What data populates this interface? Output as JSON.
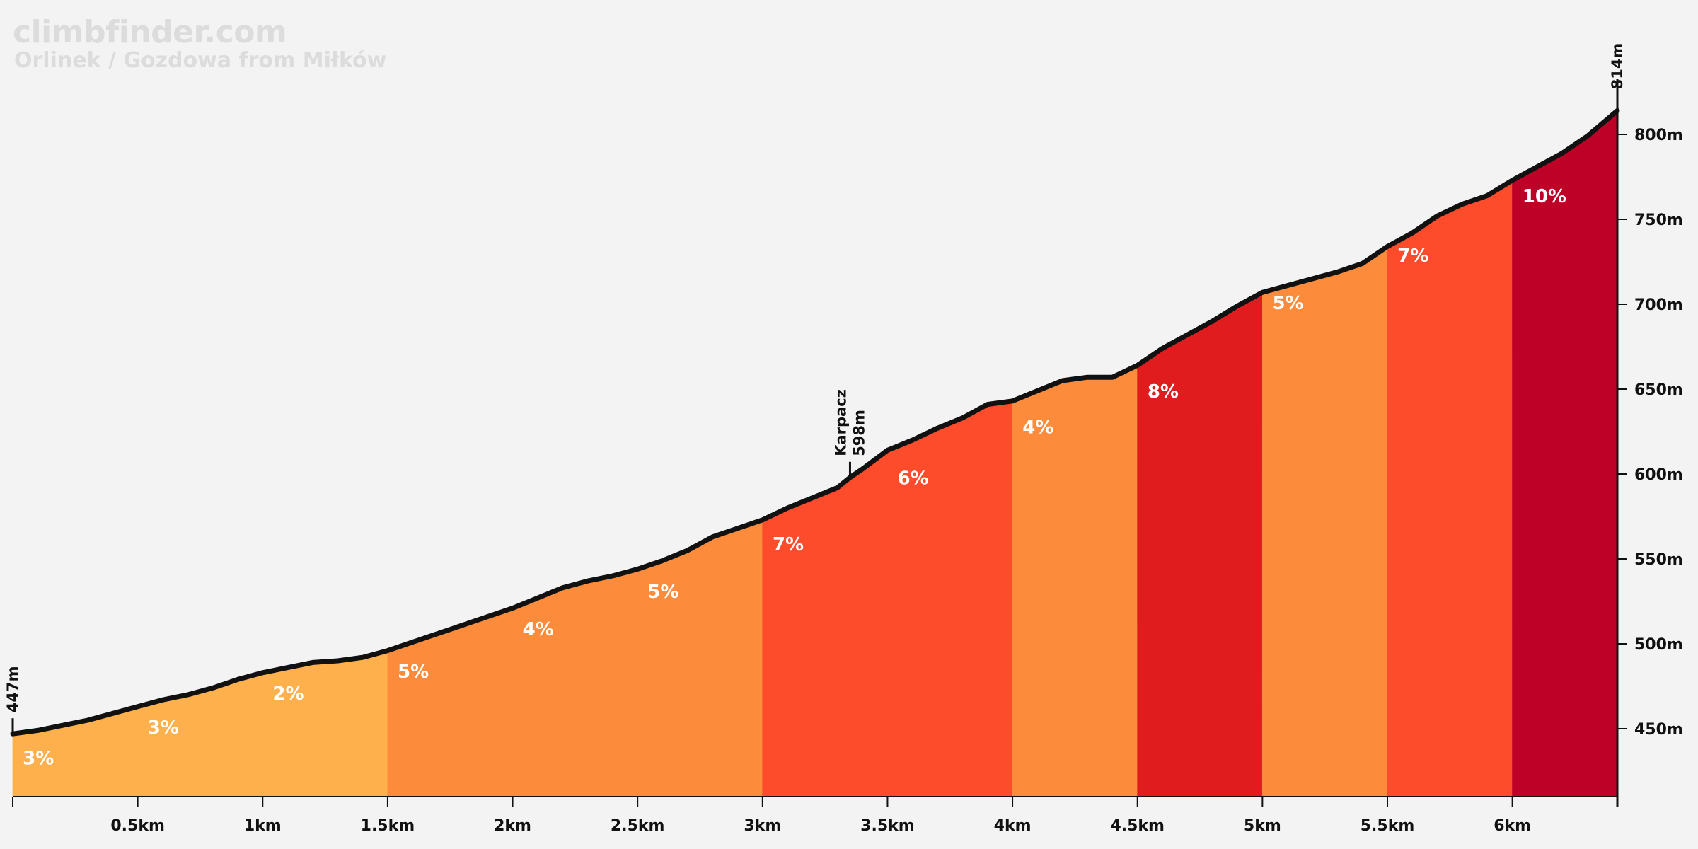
{
  "watermark": {
    "site": "climbfinder.com",
    "climb": "Orlinek / Gozdowa from Miłków"
  },
  "colors": {
    "grade_2_3": "#fdb04b",
    "grade_4_5": "#fc8c3b",
    "grade_6_7": "#fc4c2b",
    "grade_8": "#e11c1e",
    "grade_10": "#be0127",
    "line": "#111111",
    "background": "#f3f3f3"
  },
  "chart_data": {
    "type": "area",
    "title": "Orlinek / Gozdowa from Miłków",
    "xlabel": "",
    "ylabel": "",
    "xlim": [
      0,
      6.42
    ],
    "ylim": [
      410,
      830
    ],
    "x_ticks": [
      {
        "value": 0.5,
        "label": "0.5km"
      },
      {
        "value": 1.0,
        "label": "1km"
      },
      {
        "value": 1.5,
        "label": "1.5km"
      },
      {
        "value": 2.0,
        "label": "2km"
      },
      {
        "value": 2.5,
        "label": "2.5km"
      },
      {
        "value": 3.0,
        "label": "3km"
      },
      {
        "value": 3.5,
        "label": "3.5km"
      },
      {
        "value": 4.0,
        "label": "4km"
      },
      {
        "value": 4.5,
        "label": "4.5km"
      },
      {
        "value": 5.0,
        "label": "5km"
      },
      {
        "value": 5.5,
        "label": "5.5km"
      },
      {
        "value": 6.0,
        "label": "6km"
      }
    ],
    "y_ticks": [
      {
        "value": 450,
        "label": "450m"
      },
      {
        "value": 500,
        "label": "500m"
      },
      {
        "value": 550,
        "label": "550m"
      },
      {
        "value": 600,
        "label": "600m"
      },
      {
        "value": 650,
        "label": "650m"
      },
      {
        "value": 700,
        "label": "700m"
      },
      {
        "value": 750,
        "label": "750m"
      },
      {
        "value": 800,
        "label": "800m"
      }
    ],
    "segments": [
      {
        "start": 0.0,
        "end": 1.5,
        "color": "#fdb04b"
      },
      {
        "start": 1.5,
        "end": 3.0,
        "color": "#fc8c3b"
      },
      {
        "start": 3.0,
        "end": 4.0,
        "color": "#fc4c2b"
      },
      {
        "start": 4.0,
        "end": 4.5,
        "color": "#fc8c3b"
      },
      {
        "start": 4.5,
        "end": 5.0,
        "color": "#e11c1e"
      },
      {
        "start": 5.0,
        "end": 5.5,
        "color": "#fc8c3b"
      },
      {
        "start": 5.5,
        "end": 6.0,
        "color": "#fc4c2b"
      },
      {
        "start": 6.0,
        "end": 6.42,
        "color": "#be0127"
      }
    ],
    "grade_labels": [
      {
        "x": 0.04,
        "elev": 429,
        "label": "3%"
      },
      {
        "x": 0.54,
        "elev": 447,
        "label": "3%"
      },
      {
        "x": 1.04,
        "elev": 467,
        "label": "2%"
      },
      {
        "x": 1.54,
        "elev": 480,
        "label": "5%"
      },
      {
        "x": 2.04,
        "elev": 505,
        "label": "4%"
      },
      {
        "x": 2.54,
        "elev": 527,
        "label": "5%"
      },
      {
        "x": 3.04,
        "elev": 555,
        "label": "7%"
      },
      {
        "x": 3.54,
        "elev": 594,
        "label": "6%"
      },
      {
        "x": 4.04,
        "elev": 624,
        "label": "4%"
      },
      {
        "x": 4.54,
        "elev": 645,
        "label": "8%"
      },
      {
        "x": 5.04,
        "elev": 697,
        "label": "5%"
      },
      {
        "x": 5.54,
        "elev": 725,
        "label": "7%"
      },
      {
        "x": 6.04,
        "elev": 760,
        "label": "10%"
      }
    ],
    "profile": [
      [
        0.0,
        447
      ],
      [
        0.1,
        449
      ],
      [
        0.2,
        452
      ],
      [
        0.3,
        455
      ],
      [
        0.4,
        459
      ],
      [
        0.5,
        463
      ],
      [
        0.6,
        467
      ],
      [
        0.7,
        470
      ],
      [
        0.8,
        474
      ],
      [
        0.9,
        479
      ],
      [
        1.0,
        483
      ],
      [
        1.1,
        486
      ],
      [
        1.2,
        489
      ],
      [
        1.3,
        490
      ],
      [
        1.4,
        492
      ],
      [
        1.5,
        496
      ],
      [
        1.6,
        501
      ],
      [
        1.7,
        506
      ],
      [
        1.8,
        511
      ],
      [
        1.9,
        516
      ],
      [
        2.0,
        521
      ],
      [
        2.1,
        527
      ],
      [
        2.2,
        533
      ],
      [
        2.3,
        537
      ],
      [
        2.4,
        540
      ],
      [
        2.5,
        544
      ],
      [
        2.6,
        549
      ],
      [
        2.7,
        555
      ],
      [
        2.8,
        563
      ],
      [
        2.9,
        568
      ],
      [
        3.0,
        573
      ],
      [
        3.1,
        580
      ],
      [
        3.2,
        586
      ],
      [
        3.3,
        592
      ],
      [
        3.35,
        598
      ],
      [
        3.4,
        603
      ],
      [
        3.5,
        614
      ],
      [
        3.6,
        620
      ],
      [
        3.7,
        627
      ],
      [
        3.8,
        633
      ],
      [
        3.9,
        641
      ],
      [
        4.0,
        643
      ],
      [
        4.1,
        649
      ],
      [
        4.2,
        655
      ],
      [
        4.3,
        657
      ],
      [
        4.4,
        657
      ],
      [
        4.5,
        664
      ],
      [
        4.6,
        674
      ],
      [
        4.7,
        682
      ],
      [
        4.8,
        690
      ],
      [
        4.9,
        699
      ],
      [
        5.0,
        707
      ],
      [
        5.1,
        711
      ],
      [
        5.2,
        715
      ],
      [
        5.3,
        719
      ],
      [
        5.4,
        724
      ],
      [
        5.5,
        734
      ],
      [
        5.6,
        742
      ],
      [
        5.7,
        752
      ],
      [
        5.8,
        759
      ],
      [
        5.9,
        764
      ],
      [
        6.0,
        773
      ],
      [
        6.1,
        781
      ],
      [
        6.2,
        789
      ],
      [
        6.3,
        799
      ],
      [
        6.42,
        814
      ]
    ],
    "annotations": [
      {
        "x": 0.0,
        "elev": 447,
        "lines": [
          "447m"
        ]
      },
      {
        "x": 3.35,
        "elev": 598,
        "lines": [
          "Karpacz",
          "598m"
        ]
      },
      {
        "x": 6.42,
        "elev": 814,
        "lines": [
          "814m"
        ]
      }
    ]
  }
}
